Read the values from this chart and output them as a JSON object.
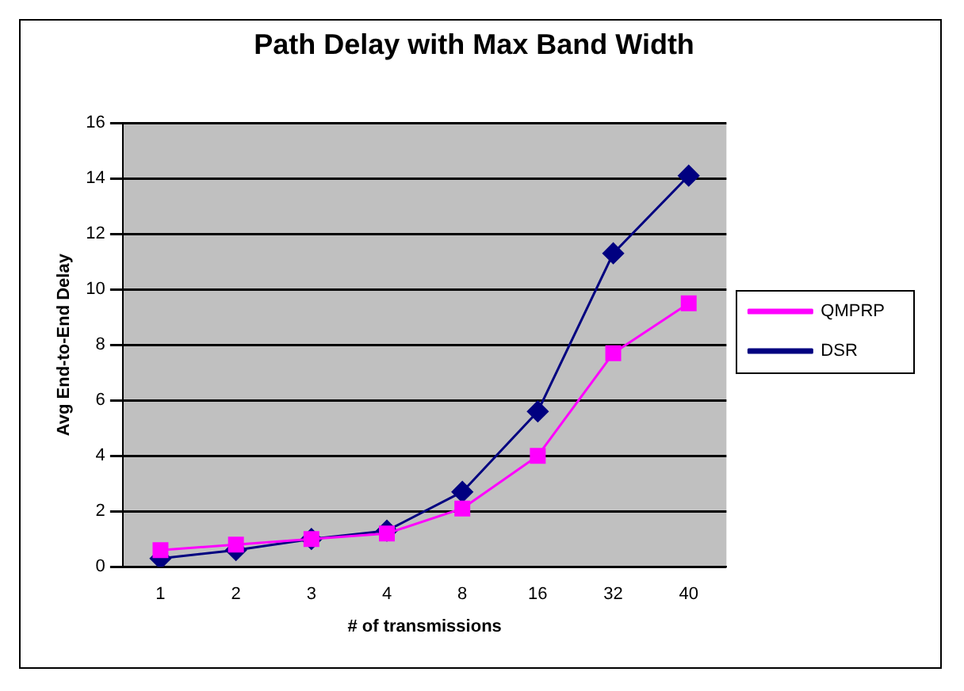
{
  "chart_data": {
    "type": "line",
    "title": "Path Delay with Max Band Width",
    "xlabel": "# of transmissions",
    "ylabel": "Avg End-to-End Delay",
    "categories": [
      "1",
      "2",
      "3",
      "4",
      "8",
      "16",
      "32",
      "40"
    ],
    "series": [
      {
        "name": "DSR",
        "color": "#000080",
        "marker": "diamond",
        "values": [
          0.3,
          0.6,
          1.0,
          1.3,
          2.7,
          5.6,
          11.3,
          14.1
        ]
      },
      {
        "name": "QMPRP",
        "color": "#ff00ff",
        "marker": "square",
        "values": [
          0.6,
          0.8,
          1.0,
          1.2,
          2.1,
          4.0,
          7.7,
          9.5
        ]
      }
    ],
    "ylim": [
      0,
      16
    ],
    "yticks": [
      0,
      2,
      4,
      6,
      8,
      10,
      12,
      14,
      16
    ],
    "grid": "y",
    "legend": "right",
    "line_style": "solid"
  }
}
